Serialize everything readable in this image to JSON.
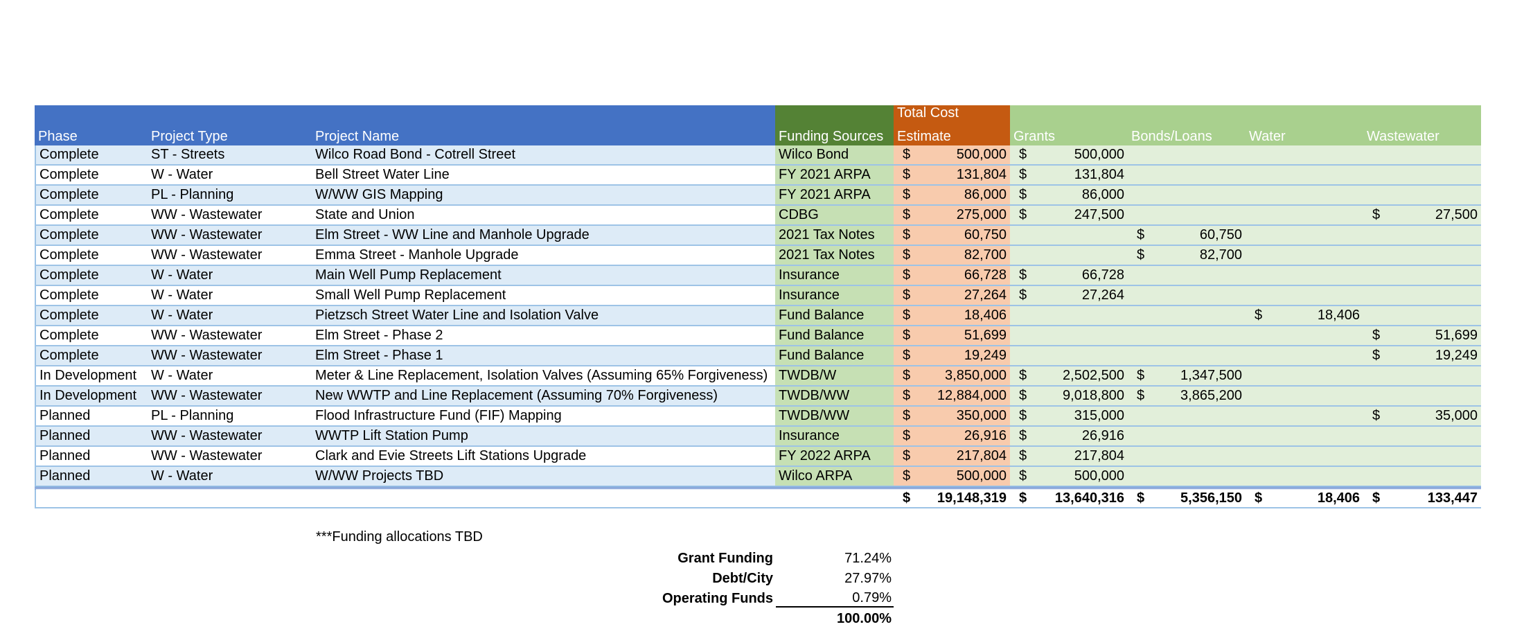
{
  "headers": {
    "phase": "Phase",
    "type": "Project Type",
    "name": "Project Name",
    "funding": "Funding Sources",
    "cost_line1": "Total Cost",
    "cost_line2": "Estimate",
    "grants": "Grants",
    "bonds": "Bonds/Loans",
    "water": "Water",
    "wastewater": "Wastewater"
  },
  "currency_symbol": "$",
  "rows": [
    {
      "phase": "Complete",
      "type": "ST - Streets",
      "name": "Wilco Road Bond - Cotrell Street",
      "funding": "Wilco Bond",
      "cost": "500,000",
      "grants": "500,000",
      "bonds": "",
      "water": "",
      "wastewater": ""
    },
    {
      "phase": "Complete",
      "type": "W - Water",
      "name": "Bell Street Water Line",
      "funding": "FY 2021 ARPA",
      "cost": "131,804",
      "grants": "131,804",
      "bonds": "",
      "water": "",
      "wastewater": ""
    },
    {
      "phase": "Complete",
      "type": "PL - Planning",
      "name": "W/WW GIS Mapping",
      "funding": "FY 2021 ARPA",
      "cost": "86,000",
      "grants": "86,000",
      "bonds": "",
      "water": "",
      "wastewater": ""
    },
    {
      "phase": "Complete",
      "type": "WW - Wastewater",
      "name": "State and Union",
      "funding": "CDBG",
      "cost": "275,000",
      "grants": "247,500",
      "bonds": "",
      "water": "",
      "wastewater": "27,500"
    },
    {
      "phase": "Complete",
      "type": "WW - Wastewater",
      "name": "Elm Street - WW Line and Manhole Upgrade",
      "funding": "2021 Tax Notes",
      "cost": "60,750",
      "grants": "",
      "bonds": "60,750",
      "water": "",
      "wastewater": ""
    },
    {
      "phase": "Complete",
      "type": "WW - Wastewater",
      "name": "Emma Street - Manhole Upgrade",
      "funding": "2021 Tax Notes",
      "cost": "82,700",
      "grants": "",
      "bonds": "82,700",
      "water": "",
      "wastewater": ""
    },
    {
      "phase": "Complete",
      "type": "W - Water",
      "name": "Main Well Pump Replacement",
      "funding": "Insurance",
      "cost": "66,728",
      "grants": "66,728",
      "bonds": "",
      "water": "",
      "wastewater": ""
    },
    {
      "phase": "Complete",
      "type": "W - Water",
      "name": "Small Well Pump Replacement",
      "funding": "Insurance",
      "cost": "27,264",
      "grants": "27,264",
      "bonds": "",
      "water": "",
      "wastewater": ""
    },
    {
      "phase": "Complete",
      "type": "W - Water",
      "name": "Pietzsch Street Water Line and Isolation Valve",
      "funding": "Fund Balance",
      "cost": "18,406",
      "grants": "",
      "bonds": "",
      "water": "18,406",
      "wastewater": ""
    },
    {
      "phase": "Complete",
      "type": "WW - Wastewater",
      "name": "Elm Street - Phase 2",
      "funding": "Fund Balance",
      "cost": "51,699",
      "grants": "",
      "bonds": "",
      "water": "",
      "wastewater": "51,699"
    },
    {
      "phase": "Complete",
      "type": "WW - Wastewater",
      "name": "Elm Street - Phase 1",
      "funding": "Fund Balance",
      "cost": "19,249",
      "grants": "",
      "bonds": "",
      "water": "",
      "wastewater": "19,249"
    },
    {
      "phase": "In Development",
      "type": "W - Water",
      "name": "Meter & Line Replacement, Isolation Valves (Assuming 65% Forgiveness)",
      "funding": "TWDB/W",
      "cost": "3,850,000",
      "grants": "2,502,500",
      "bonds": "1,347,500",
      "water": "",
      "wastewater": ""
    },
    {
      "phase": "In Development",
      "type": "WW - Wastewater",
      "name": "New WWTP and Line Replacement (Assuming 70% Forgiveness)",
      "funding": "TWDB/WW",
      "cost": "12,884,000",
      "grants": "9,018,800",
      "bonds": "3,865,200",
      "water": "",
      "wastewater": ""
    },
    {
      "phase": "Planned",
      "type": "PL - Planning",
      "name": "Flood Infrastructure Fund (FIF) Mapping",
      "funding": "TWDB/WW",
      "cost": "350,000",
      "grants": "315,000",
      "bonds": "",
      "water": "",
      "wastewater": "35,000"
    },
    {
      "phase": "Planned",
      "type": "WW - Wastewater",
      "name": "WWTP Lift Station Pump",
      "funding": "Insurance",
      "cost": "26,916",
      "grants": "26,916",
      "bonds": "",
      "water": "",
      "wastewater": ""
    },
    {
      "phase": "Planned",
      "type": "WW - Wastewater",
      "name": "Clark and Evie Streets Lift Stations Upgrade",
      "funding": "FY 2022 ARPA",
      "cost": "217,804",
      "grants": "217,804",
      "bonds": "",
      "water": "",
      "wastewater": ""
    },
    {
      "phase": "Planned",
      "type": "W - Water",
      "name": "W/WW Projects TBD",
      "funding": "Wilco ARPA",
      "cost": "500,000",
      "grants": "500,000",
      "bonds": "",
      "water": "",
      "wastewater": ""
    }
  ],
  "totals": {
    "cost": "19,148,319",
    "grants": "13,640,316",
    "bonds": "5,356,150",
    "water": "18,406",
    "wastewater": "133,447"
  },
  "note": "***Funding allocations TBD",
  "summary": [
    {
      "label": "Grant Funding",
      "value": "71.24%"
    },
    {
      "label": "Debt/City",
      "value": "27.97%"
    },
    {
      "label": "Operating Funds",
      "value": "0.79%"
    }
  ],
  "summary_total": "100.00%",
  "colors": {
    "header_blue": "#4472C4",
    "header_funding": "#548235",
    "header_cost": "#C55A11",
    "header_numbers": "#A9D08E",
    "row_band": "#DDEBF7",
    "funding_fill": "#C6E0B4",
    "cost_fill": "#F8CBAD",
    "numbers_fill": "#E2EFDA"
  }
}
